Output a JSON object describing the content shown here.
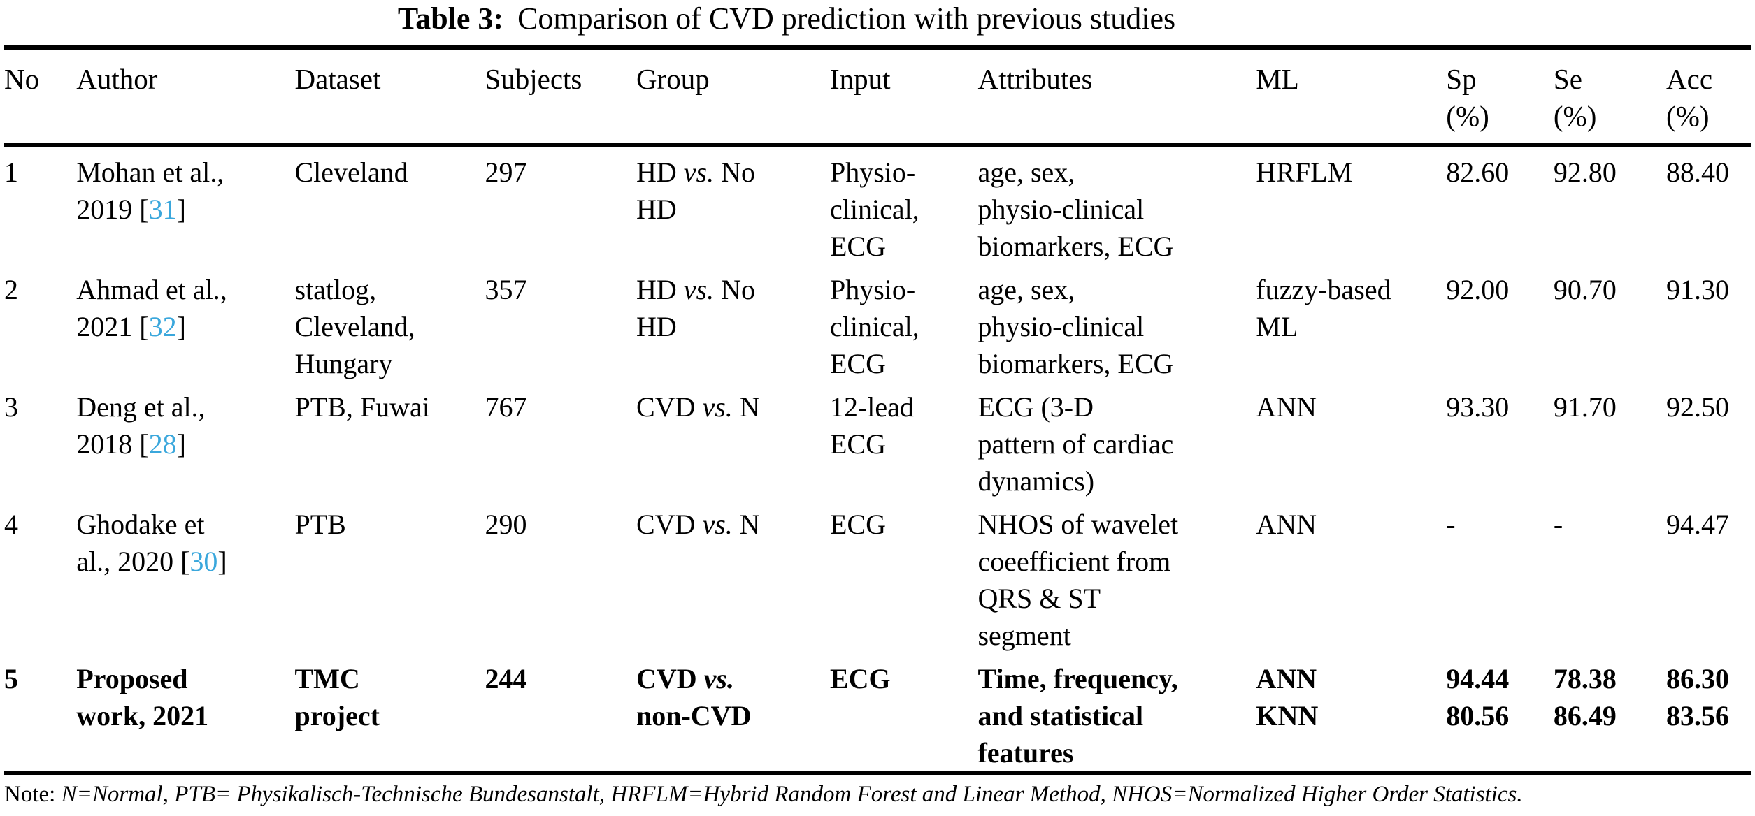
{
  "title": {
    "label": "Table 3:",
    "text": "Comparison of CVD prediction with previous studies"
  },
  "table": {
    "columns": [
      {
        "key": "no",
        "label": "No",
        "unit": ""
      },
      {
        "key": "author",
        "label": "Author",
        "unit": ""
      },
      {
        "key": "dataset",
        "label": "Dataset",
        "unit": ""
      },
      {
        "key": "subjects",
        "label": "Subjects",
        "unit": ""
      },
      {
        "key": "group",
        "label": "Group",
        "unit": ""
      },
      {
        "key": "input",
        "label": "Input",
        "unit": ""
      },
      {
        "key": "attributes",
        "label": "Attributes",
        "unit": ""
      },
      {
        "key": "ml",
        "label": "ML",
        "unit": ""
      },
      {
        "key": "sp",
        "label": "Sp",
        "unit": "(%)"
      },
      {
        "key": "se",
        "label": "Se",
        "unit": "(%)"
      },
      {
        "key": "acc",
        "label": "Acc",
        "unit": "(%)"
      }
    ],
    "rows": [
      {
        "no": "1",
        "author": "Mohan et al.,\n2019 [31]",
        "dataset": "Cleveland",
        "subjects": "297",
        "group": "HD vs. No\nHD",
        "input": "Physio-\nclinical,\nECG",
        "attributes": "age, sex,\nphysio-clinical\nbiomarkers, ECG",
        "ml": "HRFLM",
        "sp": "82.60",
        "se": "92.80",
        "acc": "88.40",
        "bold": false
      },
      {
        "no": "2",
        "author": "Ahmad et al.,\n2021 [32]",
        "dataset": "statlog,\nCleveland,\nHungary",
        "subjects": "357",
        "group": "HD vs. No\nHD",
        "input": "Physio-\nclinical,\nECG",
        "attributes": "age, sex,\nphysio-clinical\nbiomarkers, ECG",
        "ml": "fuzzy-based\nML",
        "sp": "92.00",
        "se": "90.70",
        "acc": "91.30",
        "bold": false
      },
      {
        "no": "3",
        "author": "Deng et al.,\n2018 [28]",
        "dataset": "PTB, Fuwai",
        "subjects": "767",
        "group": "CVD vs. N",
        "input": "12-lead\nECG",
        "attributes": "ECG (3-D\npattern of cardiac\ndynamics)",
        "ml": "ANN",
        "sp": "93.30",
        "se": "91.70",
        "acc": "92.50",
        "bold": false
      },
      {
        "no": "4",
        "author": "Ghodake et\nal., 2020 [30]",
        "dataset": "PTB",
        "subjects": "290",
        "group": "CVD vs. N",
        "input": "ECG",
        "attributes": "NHOS of wavelet\ncoeefficient from\nQRS & ST\nsegment",
        "ml": "ANN",
        "sp": "-",
        "se": "-",
        "acc": "94.47",
        "bold": false
      },
      {
        "no": "5",
        "author": "Proposed\nwork, 2021",
        "dataset": "TMC\nproject",
        "subjects": "244",
        "group": "CVD vs.\nnon-CVD",
        "input": "ECG",
        "attributes": "Time, frequency,\nand statistical\nfeatures",
        "ml": "ANN\nKNN",
        "sp": "94.44\n80.56",
        "se": "78.38\n86.49",
        "acc": "86.30\n83.56",
        "bold": true
      }
    ]
  },
  "note": {
    "prefix": "Note:",
    "text": "N=Normal, PTB= Physikalisch-Technische Bundesanstalt, HRFLM=Hybrid Random Forest and Linear Method, NHOS=Normalized Higher Order Statistics."
  },
  "colors": {
    "citation": "#3aa7dc"
  }
}
